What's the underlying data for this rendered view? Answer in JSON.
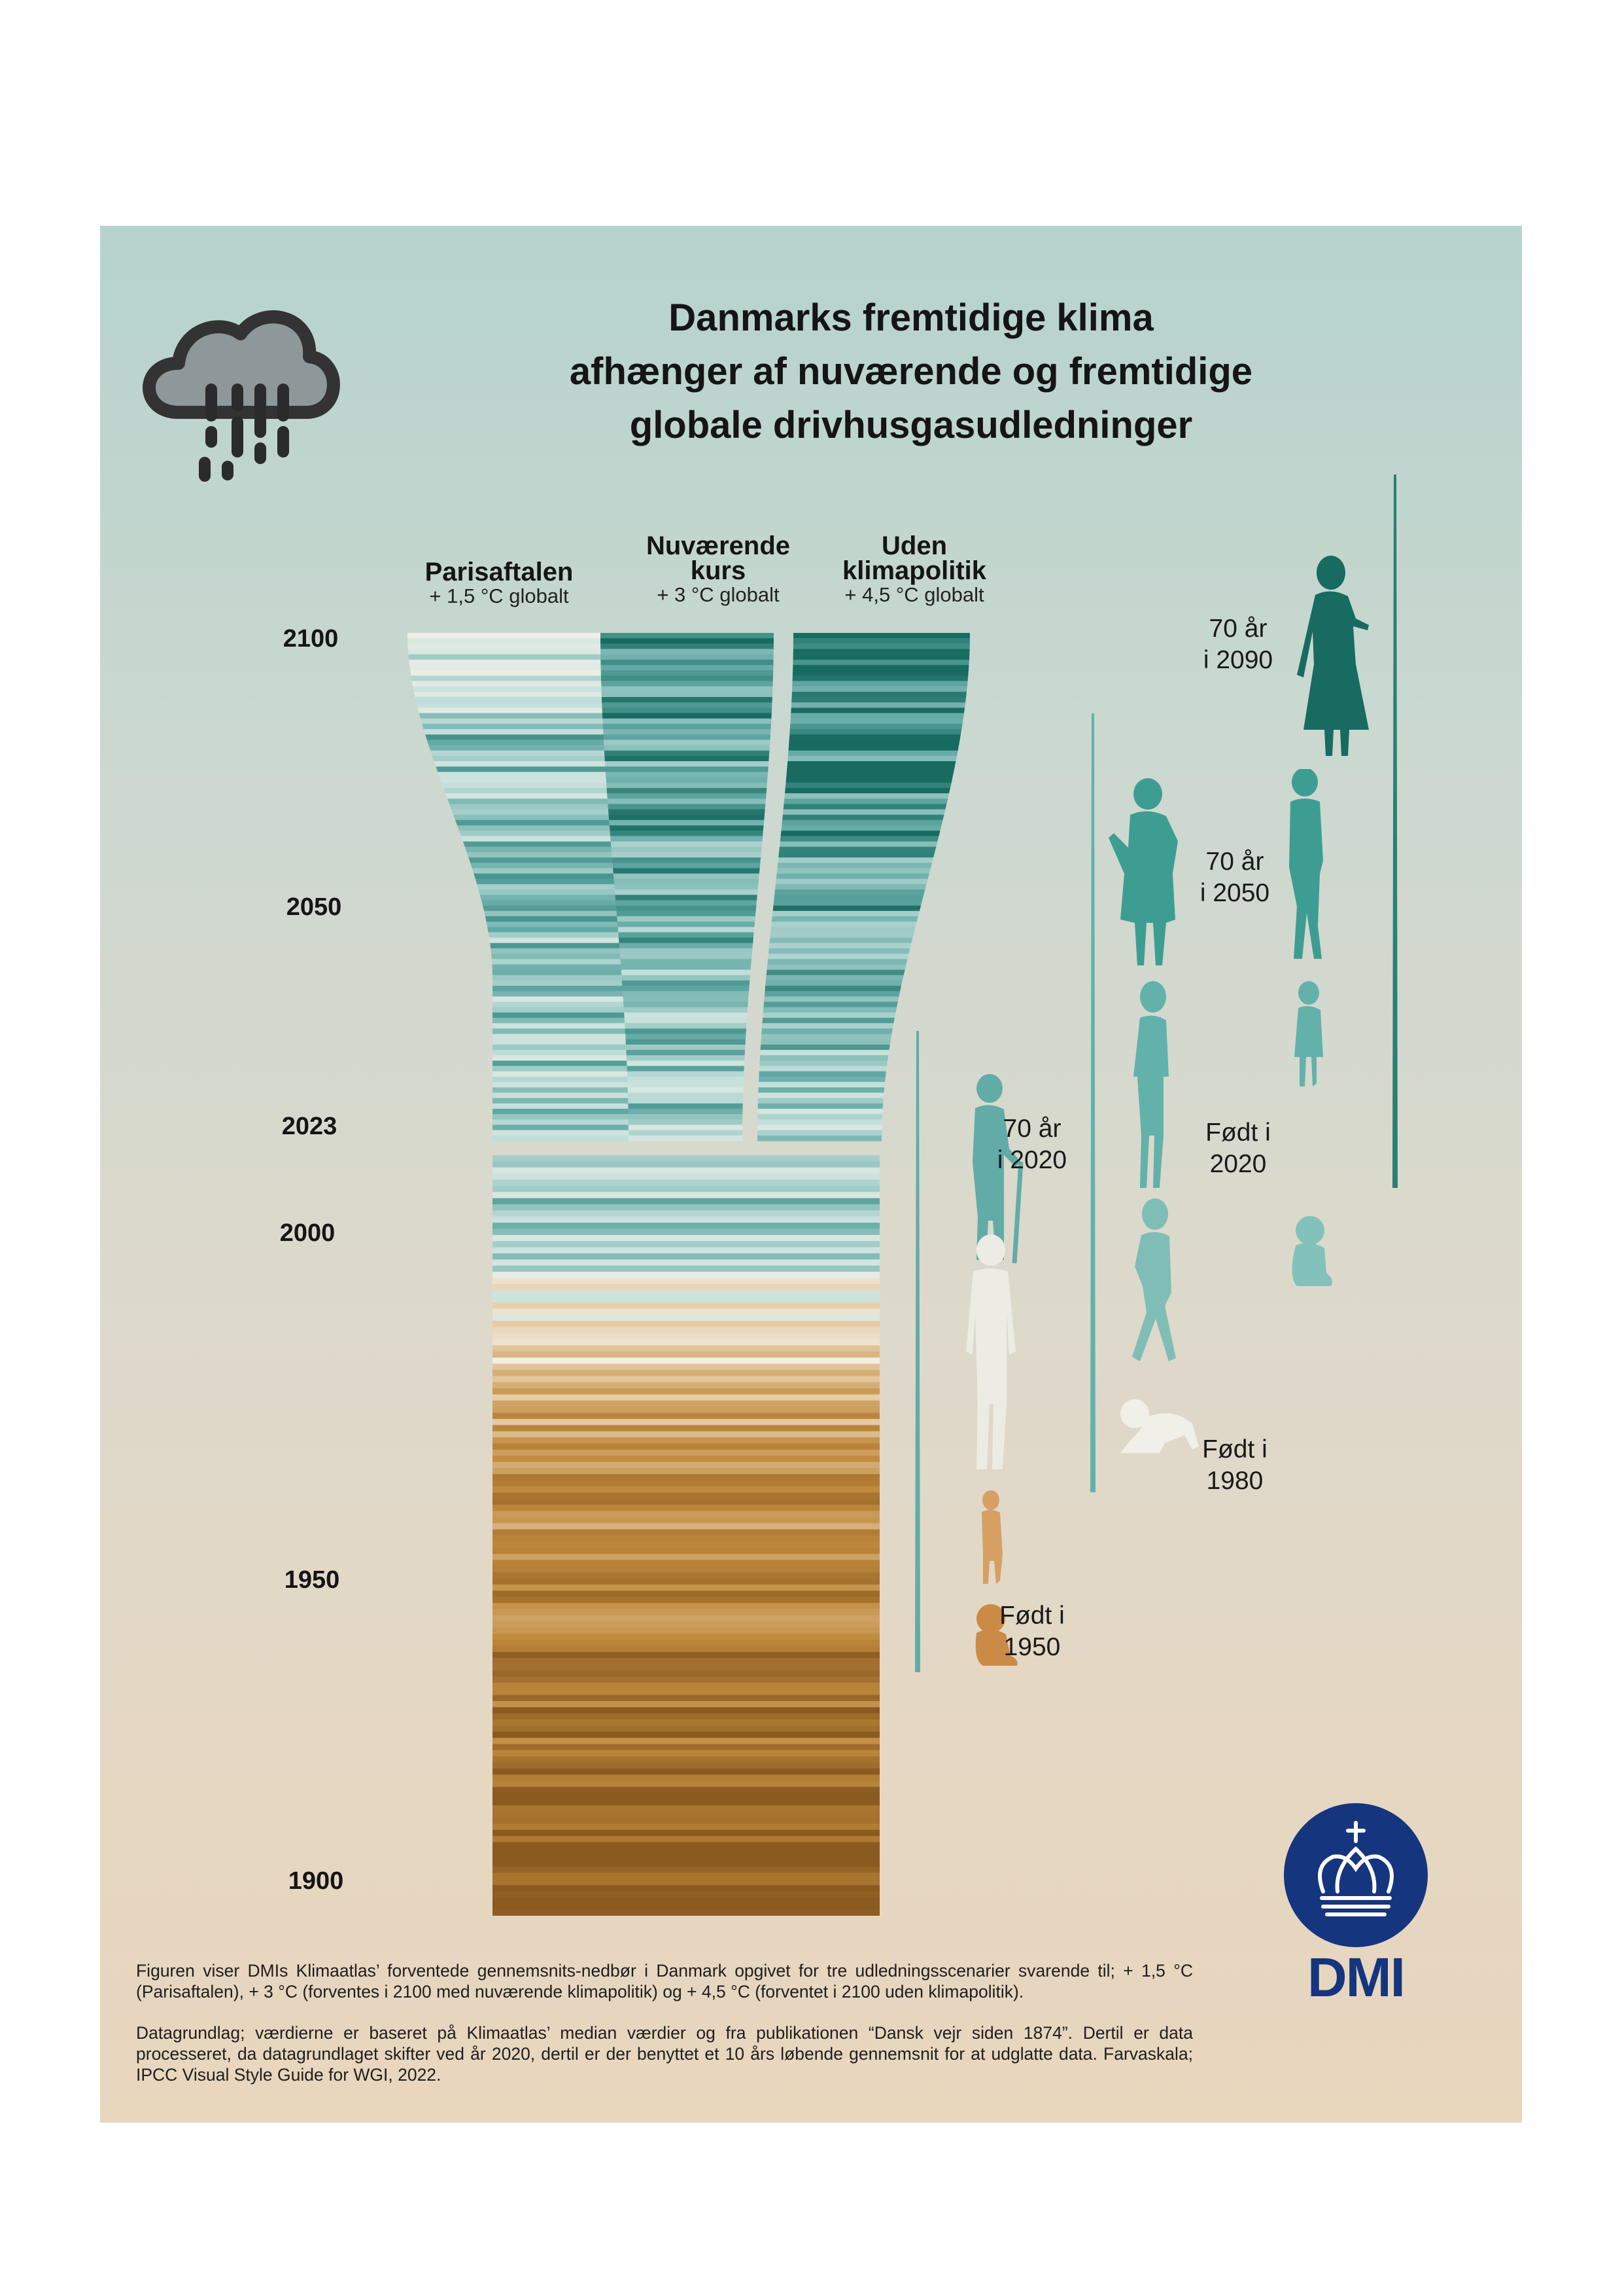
{
  "title": {
    "line1": "Danmarks fremtidige klima",
    "line2": "afhænger af nuværende og fremtidige",
    "line3": "globale drivhusgasudledninger"
  },
  "scenarios": [
    {
      "name_line1": "Parisaftalen",
      "name_line2": "",
      "subtitle": "+ 1,5 °C globalt"
    },
    {
      "name_line1": "Nuværende",
      "name_line2": "kurs",
      "subtitle": "+ 3 °C globalt"
    },
    {
      "name_line1": "Uden",
      "name_line2": "klimapolitik",
      "subtitle": "+ 4,5 °C globalt"
    }
  ],
  "year_labels": [
    "2100",
    "2050",
    "2023",
    "2000",
    "1950",
    "1900"
  ],
  "generations": {
    "gen1950": {
      "born_line1": "Født i",
      "born_line2": "1950",
      "age_line1": "70 år",
      "age_line2": "i 2020"
    },
    "gen1980": {
      "born_line1": "Født i",
      "born_line2": "1980",
      "age_line1": "70 år",
      "age_line2": "i 2050"
    },
    "gen2020": {
      "born_line1": "Født i",
      "born_line2": "2020",
      "age_line1": "70 år",
      "age_line2": "i 2090"
    }
  },
  "logo": {
    "text": "DMI"
  },
  "notes": {
    "paragraph1": "Figuren viser DMIs Klimaatlas’ forventede gennemsnits-nedbør i Danmark opgivet for tre udledningsscenarier svarende til; + 1,5 °C (Parisaftalen), + 3 °C (forventes i 2100 med nuværende klimapolitik) og + 4,5 °C (forventet i 2100 uden klimapolitik).",
    "paragraph2": "Datagrundlag; værdierne er baseret på Klimaatlas’ median værdier og fra publikationen “Dansk vejr siden 1874”. Dertil er data processeret, da datagrundlaget skifter ved år 2020, dertil er der benyttet et 10 års løbende gennemsnit for at udglatte data. Farvaskala; IPCC Visual Style Guide for WGI, 2022."
  },
  "colors": {
    "dry_dark": "#8a5a1f",
    "dry_mid": "#c08a3e",
    "dry_light": "#e6caa3",
    "neutral": "#f2f0e8",
    "wet_light": "#c5e0dc",
    "wet_mid": "#5fa7a3",
    "wet_dark": "#176b60",
    "logo_blue": "#15357f",
    "generation_1950": "#d19a5a",
    "generation_1980": "#ecebe3",
    "generation_2020": "#63b1ab"
  },
  "chart_data": {
    "type": "heatmap",
    "title": "Danmarks fremtidige klima afhænger af nuværende og fremtidige globale drivhusgasudledninger",
    "xlabel": "",
    "ylabel": "",
    "y_ticks": [
      1900,
      1950,
      2000,
      2023,
      2050,
      2100
    ],
    "historical": {
      "years": [
        1900,
        2023
      ],
      "trend": "dry (brown) 1900–1980s, neutral/wet mix 1980–2000, wet (teal) after 2000"
    },
    "series": [
      {
        "name": "Parisaftalen",
        "years": [
          2023,
          2100
        ],
        "trend": "light teal, fading towards pale near 2100"
      },
      {
        "name": "Nuværende kurs",
        "years": [
          2023,
          2100
        ],
        "trend": "medium teal, getting wetter"
      },
      {
        "name": "Uden klimapolitik",
        "years": [
          2023,
          2100
        ],
        "trend": "dark teal, wettest"
      }
    ]
  }
}
